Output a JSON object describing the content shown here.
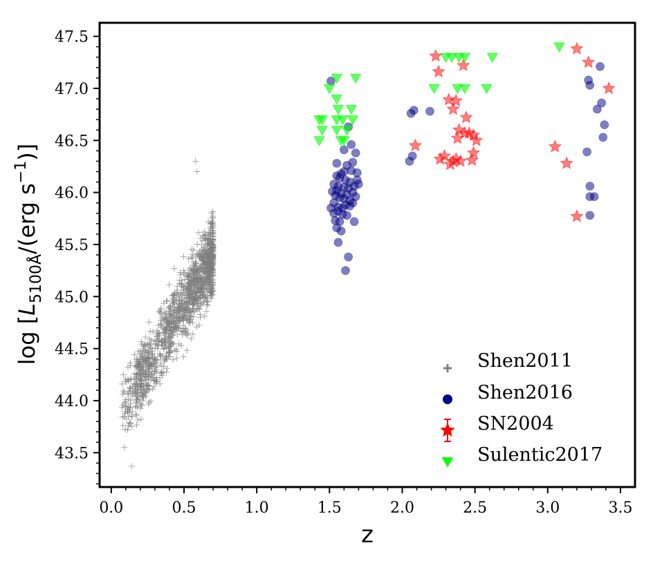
{
  "chart_data": {
    "type": "scatter",
    "title": "",
    "xlabel": "z",
    "ylabel": {
      "prefix": "log [",
      "symbol": "L",
      "subscript": "5100Å",
      "unit_open": "/(erg s",
      "unit_exponent": "−1",
      "unit_close": ")]"
    },
    "xlim": [
      -0.08,
      3.6
    ],
    "ylim": [
      43.17,
      47.63
    ],
    "xticks": [
      0.0,
      0.5,
      1.0,
      1.5,
      2.0,
      2.5,
      3.0,
      3.5
    ],
    "xtick_labels": [
      "0.0",
      "0.5",
      "1.0",
      "1.5",
      "2.0",
      "2.5",
      "3.0",
      "3.5"
    ],
    "yticks": [
      43.5,
      44.0,
      44.5,
      45.0,
      45.5,
      46.0,
      46.5,
      47.0,
      47.5
    ],
    "ytick_labels": [
      "43.5",
      "44.0",
      "44.5",
      "45.0",
      "45.5",
      "46.0",
      "46.5",
      "47.0",
      "47.5"
    ],
    "grid": false,
    "legend_position": "bottom-right",
    "series": [
      {
        "name": "Shen2011",
        "marker": "plus",
        "color": "#7f7f7f",
        "cloud": {
          "count": 1400,
          "z_range": [
            0.07,
            0.7
          ],
          "relation": "logL ≈ 43.75 + 2.35·z (scatter ±0.3)",
          "extremes": [
            {
              "x": 0.58,
              "y": 46.3
            },
            {
              "x": 0.59,
              "y": 46.2
            },
            {
              "x": 0.14,
              "y": 43.37
            },
            {
              "x": 0.09,
              "y": 43.55
            }
          ]
        }
      },
      {
        "name": "Shen2016",
        "marker": "circle",
        "color": "#000080",
        "points": [
          [
            1.51,
            47.07
          ],
          [
            1.63,
            46.63
          ],
          [
            1.6,
            46.41
          ],
          [
            1.65,
            46.46
          ],
          [
            1.68,
            46.38
          ],
          [
            1.55,
            46.28
          ],
          [
            1.62,
            46.26
          ],
          [
            1.66,
            46.29
          ],
          [
            1.6,
            46.2
          ],
          [
            1.58,
            46.18
          ],
          [
            1.65,
            46.21
          ],
          [
            1.69,
            46.19
          ],
          [
            1.55,
            46.16
          ],
          [
            1.57,
            46.14
          ],
          [
            1.61,
            46.12
          ],
          [
            1.64,
            46.1
          ],
          [
            1.69,
            46.12
          ],
          [
            1.53,
            46.08
          ],
          [
            1.56,
            46.06
          ],
          [
            1.6,
            46.05
          ],
          [
            1.63,
            46.04
          ],
          [
            1.67,
            46.06
          ],
          [
            1.7,
            46.08
          ],
          [
            1.55,
            46.02
          ],
          [
            1.58,
            45.99
          ],
          [
            1.62,
            45.98
          ],
          [
            1.66,
            46.0
          ],
          [
            1.52,
            46.01
          ],
          [
            1.54,
            45.97
          ],
          [
            1.57,
            45.95
          ],
          [
            1.6,
            45.94
          ],
          [
            1.64,
            45.92
          ],
          [
            1.66,
            45.9
          ],
          [
            1.68,
            45.96
          ],
          [
            1.53,
            45.9
          ],
          [
            1.56,
            45.86
          ],
          [
            1.59,
            45.85
          ],
          [
            1.61,
            45.88
          ],
          [
            1.64,
            45.87
          ],
          [
            1.51,
            45.85
          ],
          [
            1.53,
            45.8
          ],
          [
            1.56,
            45.82
          ],
          [
            1.59,
            45.79
          ],
          [
            1.62,
            45.78
          ],
          [
            1.67,
            45.72
          ],
          [
            1.54,
            45.73
          ],
          [
            1.57,
            45.72
          ],
          [
            1.55,
            45.66
          ],
          [
            1.58,
            45.63
          ],
          [
            1.56,
            45.52
          ],
          [
            1.63,
            45.38
          ],
          [
            1.61,
            45.25
          ],
          [
            2.08,
            46.79
          ],
          [
            2.06,
            46.76
          ],
          [
            2.19,
            46.78
          ],
          [
            2.07,
            46.35
          ],
          [
            2.05,
            46.3
          ],
          [
            3.28,
            47.08
          ],
          [
            3.29,
            47.03
          ],
          [
            3.36,
            47.21
          ],
          [
            3.37,
            46.86
          ],
          [
            3.34,
            46.8
          ],
          [
            3.39,
            46.65
          ],
          [
            3.38,
            46.53
          ],
          [
            3.27,
            46.39
          ],
          [
            3.29,
            46.06
          ],
          [
            3.29,
            45.96
          ],
          [
            3.32,
            45.96
          ],
          [
            3.29,
            45.78
          ]
        ]
      },
      {
        "name": "SN2004",
        "marker": "star",
        "color": "#ff0000",
        "points": [
          [
            2.23,
            47.31
          ],
          [
            2.25,
            47.16
          ],
          [
            2.42,
            47.22
          ],
          [
            2.32,
            46.89
          ],
          [
            2.37,
            46.88
          ],
          [
            2.35,
            46.8
          ],
          [
            2.44,
            46.72
          ],
          [
            2.39,
            46.6
          ],
          [
            2.43,
            46.57
          ],
          [
            2.46,
            46.57
          ],
          [
            2.49,
            46.55
          ],
          [
            2.38,
            46.52
          ],
          [
            2.51,
            46.5
          ],
          [
            2.09,
            46.45
          ],
          [
            2.35,
            46.3
          ],
          [
            2.33,
            46.27
          ],
          [
            2.37,
            46.32
          ],
          [
            2.4,
            46.3
          ],
          [
            2.29,
            46.35
          ],
          [
            2.26,
            46.32
          ],
          [
            2.48,
            46.31
          ],
          [
            2.49,
            46.38
          ],
          [
            3.2,
            47.38
          ],
          [
            3.28,
            47.25
          ],
          [
            3.42,
            47.0
          ],
          [
            3.05,
            46.44
          ],
          [
            3.13,
            46.28
          ],
          [
            3.2,
            45.77
          ]
        ]
      },
      {
        "name": "Sulentic2017",
        "marker": "triangle-down",
        "color": "#00ff00",
        "points": [
          [
            1.55,
            47.1
          ],
          [
            1.68,
            47.1
          ],
          [
            1.5,
            47.0
          ],
          [
            1.55,
            46.9
          ],
          [
            1.56,
            46.8
          ],
          [
            1.65,
            46.8
          ],
          [
            1.43,
            46.7
          ],
          [
            1.45,
            46.7
          ],
          [
            1.55,
            46.7
          ],
          [
            1.59,
            46.7
          ],
          [
            1.66,
            46.7
          ],
          [
            1.45,
            46.6
          ],
          [
            1.55,
            46.6
          ],
          [
            1.62,
            46.6
          ],
          [
            1.43,
            46.5
          ],
          [
            1.58,
            46.5
          ],
          [
            1.6,
            46.5
          ],
          [
            2.3,
            47.3
          ],
          [
            2.34,
            47.3
          ],
          [
            2.39,
            47.3
          ],
          [
            2.43,
            47.3
          ],
          [
            2.62,
            47.3
          ],
          [
            2.22,
            47.0
          ],
          [
            2.38,
            47.0
          ],
          [
            2.43,
            47.0
          ],
          [
            2.58,
            47.0
          ],
          [
            3.08,
            47.4
          ]
        ]
      }
    ]
  }
}
